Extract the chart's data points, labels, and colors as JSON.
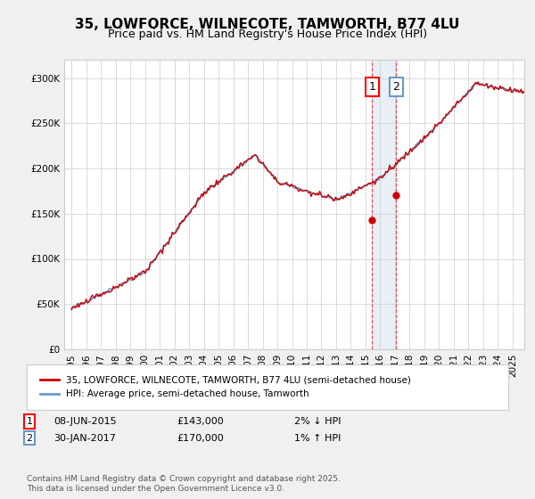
{
  "title": "35, LOWFORCE, WILNECOTE, TAMWORTH, B77 4LU",
  "subtitle": "Price paid vs. HM Land Registry's House Price Index (HPI)",
  "background_color": "#f0f0f0",
  "plot_bg_color": "#ffffff",
  "ylim": [
    0,
    320000
  ],
  "yticks": [
    0,
    50000,
    100000,
    150000,
    200000,
    250000,
    300000
  ],
  "year_start": 1995,
  "year_end": 2026,
  "hpi_color": "#6699cc",
  "price_color": "#cc0000",
  "sale1_date": "08-JUN-2015",
  "sale1_price": 143000,
  "sale1_pct": "2% ↓ HPI",
  "sale1_x": 2015.44,
  "sale2_date": "30-JAN-2017",
  "sale2_price": 170000,
  "sale2_pct": "1% ↑ HPI",
  "sale2_x": 2017.08,
  "legend_label1": "35, LOWFORCE, WILNECOTE, TAMWORTH, B77 4LU (semi-detached house)",
  "legend_label2": "HPI: Average price, semi-detached house, Tamworth",
  "footer": "Contains HM Land Registry data © Crown copyright and database right 2025.\nThis data is licensed under the Open Government Licence v3.0.",
  "annotation1": "1",
  "annotation2": "2"
}
